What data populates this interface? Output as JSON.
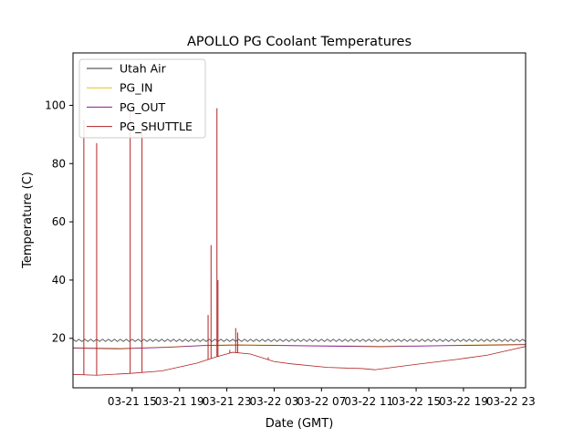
{
  "chart_data": {
    "type": "line",
    "title": "APOLLO PG Coolant Temperatures",
    "xlabel": "Date (GMT)",
    "ylabel": "Temperature (C)",
    "x_range": [
      "2022-03-21 10:00",
      "2022-03-23 00:15"
    ],
    "ylim": [
      3,
      118
    ],
    "x_ticks": [
      {
        "label": "03-21 15",
        "x": "2022-03-21 15:00"
      },
      {
        "label": "03-21 19",
        "x": "2022-03-21 19:00"
      },
      {
        "label": "03-21 23",
        "x": "2022-03-21 23:00"
      },
      {
        "label": "03-22 03",
        "x": "2022-03-22 03:00"
      },
      {
        "label": "03-22 07",
        "x": "2022-03-22 07:00"
      },
      {
        "label": "03-22 11",
        "x": "2022-03-22 11:00"
      },
      {
        "label": "03-22 15",
        "x": "2022-03-22 15:00"
      },
      {
        "label": "03-22 19",
        "x": "2022-03-22 19:00"
      },
      {
        "label": "03-22 23",
        "x": "2022-03-22 23:00"
      }
    ],
    "y_ticks": [
      {
        "label": "20",
        "value": 20
      },
      {
        "label": "40",
        "value": 40
      },
      {
        "label": "60",
        "value": 60
      },
      {
        "label": "80",
        "value": 80
      },
      {
        "label": "100",
        "value": 100
      }
    ],
    "grid": false,
    "legend_position": "top-left",
    "series": [
      {
        "name": "Utah Air",
        "color": "#333333",
        "style": "oscillating",
        "x": [
          "2022-03-21 10:00",
          "2022-03-23 00:15"
        ],
        "y": [
          19.3,
          19.3
        ],
        "amplitude": 0.8,
        "cycle_minutes": 30
      },
      {
        "name": "PG_IN",
        "color": "#e6c020",
        "x": [
          "2022-03-21 10:00",
          "2022-03-21 14:00",
          "2022-03-21 18:00",
          "2022-03-21 21:00",
          "2022-03-22 00:00",
          "2022-03-22 06:00",
          "2022-03-22 12:00",
          "2022-03-22 18:00",
          "2022-03-23 00:15"
        ],
        "y": [
          16.8,
          16.6,
          17.0,
          17.6,
          17.8,
          17.5,
          17.3,
          17.6,
          18.0
        ]
      },
      {
        "name": "PG_OUT",
        "color": "#8b1a8b",
        "x": [
          "2022-03-21 10:00",
          "2022-03-21 14:00",
          "2022-03-21 18:00",
          "2022-03-21 21:00",
          "2022-03-22 00:00",
          "2022-03-22 06:00",
          "2022-03-22 12:00",
          "2022-03-22 18:00",
          "2022-03-23 00:15"
        ],
        "y": [
          16.6,
          16.4,
          16.9,
          17.5,
          17.7,
          17.4,
          17.1,
          17.5,
          17.8
        ]
      },
      {
        "name": "PG_SHUTTLE",
        "color": "#b22222",
        "x": [
          "2022-03-21 10:00",
          "2022-03-21 12:00",
          "2022-03-21 15:00",
          "2022-03-21 17:30",
          "2022-03-21 20:30",
          "2022-03-21 22:00",
          "2022-03-21 23:30",
          "2022-03-22 01:00",
          "2022-03-22 03:00",
          "2022-03-22 04:30",
          "2022-03-22 07:30",
          "2022-03-22 10:30",
          "2022-03-22 11:30",
          "2022-03-22 14:30",
          "2022-03-22 18:30",
          "2022-03-22 21:00",
          "2022-03-23 00:15"
        ],
        "y": [
          7.6,
          7.3,
          8.0,
          8.8,
          11.5,
          13.5,
          15.2,
          14.6,
          12.0,
          11.2,
          10.0,
          9.6,
          9.2,
          10.8,
          12.8,
          14.2,
          17.2
        ],
        "spikes": [
          {
            "x": "2022-03-21 10:55",
            "y": 95
          },
          {
            "x": "2022-03-21 12:00",
            "y": 87
          },
          {
            "x": "2022-03-21 14:50",
            "y": 100
          },
          {
            "x": "2022-03-21 15:50",
            "y": 92
          },
          {
            "x": "2022-03-21 21:25",
            "y": 28
          },
          {
            "x": "2022-03-21 21:40",
            "y": 52
          },
          {
            "x": "2022-03-21 22:10",
            "y": 99
          },
          {
            "x": "2022-03-21 22:15",
            "y": 40
          },
          {
            "x": "2022-03-21 23:15",
            "y": 16
          },
          {
            "x": "2022-03-21 23:45",
            "y": 23.5
          },
          {
            "x": "2022-03-21 23:55",
            "y": 22
          },
          {
            "x": "2022-03-22 02:30",
            "y": 13.5
          }
        ]
      }
    ]
  }
}
